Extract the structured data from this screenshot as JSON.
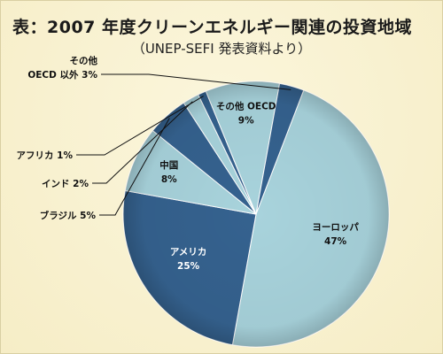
{
  "title": "表：2007 年度クリーンエネルギー関連の投資地域",
  "subtitle": "（UNEP-SEFI 発表資料より）",
  "chart_data": {
    "type": "pie",
    "unit": "%",
    "slices": [
      {
        "name": "ヨーロッパ",
        "value": 47,
        "label": "47%",
        "color": "#a8d3dc",
        "text_color": "#111111"
      },
      {
        "name": "アメリカ",
        "value": 25,
        "label": "25%",
        "color": "#35628f",
        "text_color": "#ffffff"
      },
      {
        "name": "中国",
        "value": 8,
        "label": "8%",
        "color": "#a8d3dc",
        "text_color": "#111111"
      },
      {
        "name": "ブラジル",
        "value": 5,
        "label": "5%",
        "color": "#35628f",
        "text_color": "#111111"
      },
      {
        "name": "インド",
        "value": 2,
        "label": "2%",
        "color": "#a8d3dc",
        "text_color": "#111111"
      },
      {
        "name": "アフリカ",
        "value": 1,
        "label": "1%",
        "color": "#35628f",
        "text_color": "#111111"
      },
      {
        "name": "その他 OECD",
        "value": 9,
        "label": "9%",
        "color": "#a8d3dc",
        "text_color": "#111111"
      },
      {
        "name": "その他\nOECD 以外",
        "value": 3,
        "label": "3%",
        "color": "#35628f",
        "text_color": "#111111"
      }
    ]
  }
}
